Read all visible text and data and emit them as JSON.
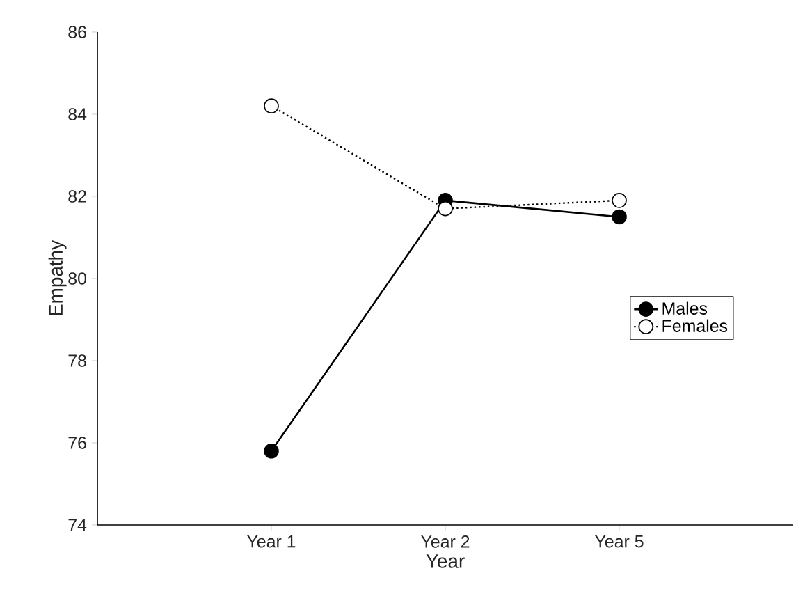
{
  "chart_data": {
    "type": "line",
    "xlabel": "Year",
    "ylabel": "Empathy",
    "categories": [
      "Year 1",
      "Year 2",
      "Year 5"
    ],
    "series": [
      {
        "name": "Males",
        "color": "#000000",
        "values": [
          75.8,
          81.9,
          81.5
        ],
        "line_style": "solid"
      },
      {
        "name": "Females",
        "color": "#000000",
        "values": [
          84.2,
          81.7,
          81.9
        ],
        "line_style": "dotted"
      }
    ],
    "ylim": [
      74,
      86
    ],
    "yticks": [
      74,
      76,
      78,
      80,
      82,
      84,
      86
    ],
    "marker": "circle",
    "legend": "right",
    "grid": false
  }
}
